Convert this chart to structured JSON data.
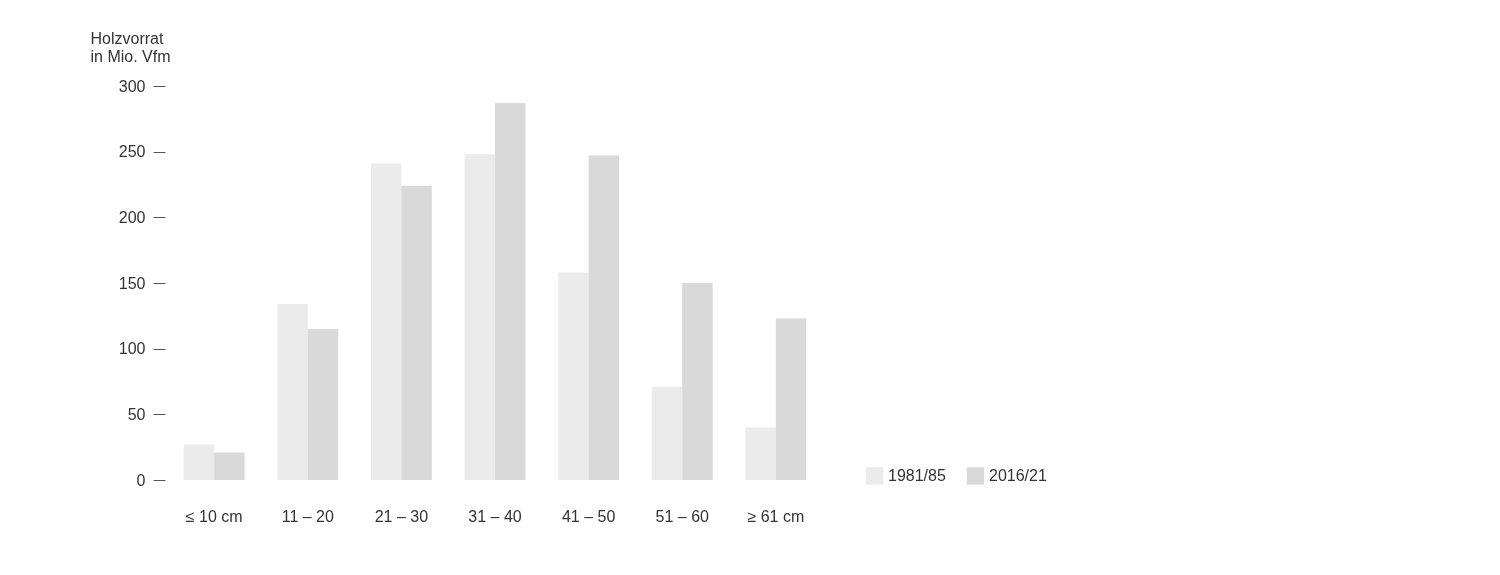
{
  "chart_data": {
    "type": "bar",
    "ylabel": "Holzvorrat\nin Mio. Vfm",
    "categories": [
      "≤ 10 cm",
      "11 – 20",
      "21 – 30",
      "31 – 40",
      "41 – 50",
      "51 – 60",
      "≥ 61 cm"
    ],
    "series": [
      {
        "name": "1981/85",
        "color": "#ebebeb",
        "values": [
          27,
          134,
          241,
          248,
          158,
          71,
          40
        ]
      },
      {
        "name": "2016/21",
        "color": "#d9d9d9",
        "values": [
          21,
          115,
          224,
          287,
          247,
          150,
          123
        ]
      }
    ],
    "ylim": [
      0,
      300
    ],
    "yticks": [
      0,
      50,
      100,
      150,
      200,
      250,
      300
    ],
    "grid": false,
    "legend": "bottom right"
  }
}
